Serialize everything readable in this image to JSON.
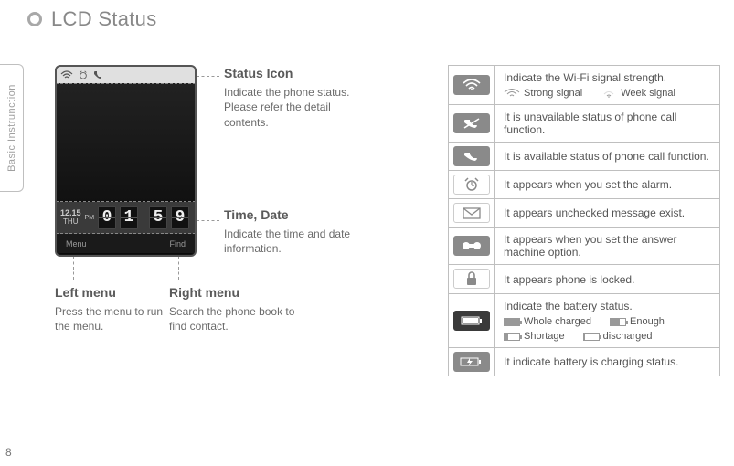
{
  "header": {
    "title": "LCD Status"
  },
  "sideTab": "Basic Instrunction",
  "pageNumber": "8",
  "phone": {
    "date": "12.15",
    "day": "THU",
    "ampm": "PM",
    "time_digits": [
      "0",
      "1",
      "5",
      "9"
    ],
    "bottom_left": "Menu",
    "bottom_right": "Find"
  },
  "callouts": {
    "status": {
      "title": "Status Icon",
      "desc": "Indicate the phone status. Please refer the detail contents."
    },
    "time": {
      "title": "Time, Date",
      "desc": "Indicate the time and date information."
    },
    "left": {
      "title": "Left menu",
      "desc": "Press the menu to run the menu."
    },
    "right": {
      "title": "Right menu",
      "desc": "Search the phone book to find contact."
    }
  },
  "iconColors": {
    "wifi_bg": "#8a8a8a",
    "call_off_bg": "#8a8a8a",
    "call_on_bg": "#8a8a8a",
    "alarm_bg": "#ffffff",
    "msg_bg": "#ffffff",
    "answer_bg": "#8a8a8a",
    "lock_bg": "#ffffff",
    "batt_bg": "#3a3a3a",
    "charge_bg": "#8a8a8a",
    "alarm_fg": "#8a8a8a",
    "msg_fg": "#8a8a8a",
    "lock_fg": "#8a8a8a"
  },
  "rows": [
    {
      "key": "wifi",
      "text": "Indicate the Wi-Fi signal strength.",
      "sub": [
        {
          "k": "strong",
          "label": "Strong signal"
        },
        {
          "k": "weak",
          "label": "Week signal"
        }
      ]
    },
    {
      "key": "calloff",
      "text": "It is unavailable status of phone call function."
    },
    {
      "key": "callon",
      "text": "It is available status of phone call function."
    },
    {
      "key": "alarm",
      "text": "It appears when you set the alarm."
    },
    {
      "key": "msg",
      "text": "It appears unchecked message exist."
    },
    {
      "key": "answer",
      "text": "It appears when you set the answer machine option."
    },
    {
      "key": "lock",
      "text": "It appears phone is locked."
    },
    {
      "key": "batt",
      "text": "Indicate the battery status.",
      "sub": [
        {
          "k": "full",
          "label": "Whole charged"
        },
        {
          "k": "enough",
          "label": "Enough"
        },
        {
          "k": "short",
          "label": "Shortage"
        },
        {
          "k": "disch",
          "label": "discharged"
        }
      ]
    },
    {
      "key": "charge",
      "text": "It indicate battery is charging status."
    }
  ]
}
